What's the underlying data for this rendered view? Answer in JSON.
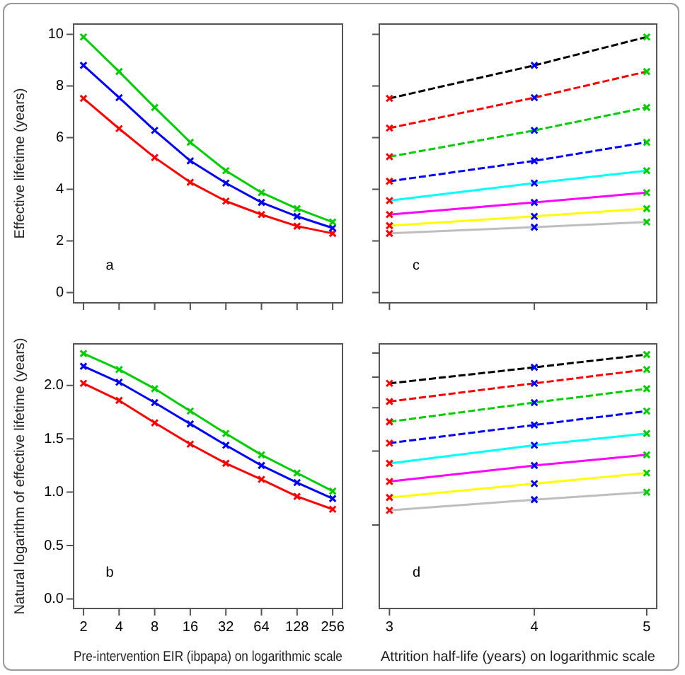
{
  "chart_data": [
    {
      "type": "line",
      "ylabel": "Effective lifetime (years)",
      "x": [
        2,
        4,
        8,
        16,
        32,
        64,
        128,
        256
      ],
      "xlim": [
        1.65,
        310
      ],
      "xticks": [
        2,
        4,
        8,
        16,
        32,
        64,
        128,
        256
      ],
      "ylim": [
        -0.4,
        10.4
      ],
      "yticks": [
        0,
        2,
        4,
        6,
        8,
        10
      ],
      "log": "x",
      "marker": "cross",
      "tick_labels": "y",
      "annotations": [
        "a"
      ],
      "series": [
        {
          "color": "#00cd00",
          "values": [
            9.9,
            8.56,
            7.17,
            5.82,
            4.72,
            3.87,
            3.25,
            2.73
          ]
        },
        {
          "color": "#0000ff",
          "values": [
            8.8,
            7.55,
            6.28,
            5.1,
            4.24,
            3.49,
            2.95,
            2.5
          ]
        },
        {
          "color": "#ff0000",
          "values": [
            7.52,
            6.35,
            5.23,
            4.27,
            3.54,
            3.02,
            2.57,
            2.29
          ]
        }
      ]
    },
    {
      "type": "line",
      "x": [
        3,
        4,
        5
      ],
      "xlim": [
        2.94,
        5.1
      ],
      "xticks": [
        3,
        4,
        5
      ],
      "ylim": [
        -0.4,
        10.4
      ],
      "yticks": [
        0,
        2,
        4,
        6,
        8,
        10
      ],
      "log": "x",
      "marker": "cross",
      "tick_labels": false,
      "annotations": [
        "c"
      ],
      "series": [
        {
          "color": "#000000",
          "line_style": "dashed",
          "colors": [
            "#ff0000",
            "#0000ff",
            "#00cd00"
          ],
          "values": [
            7.52,
            8.8,
            9.9
          ]
        },
        {
          "color": "#ff0000",
          "line_style": "dashed",
          "colors": [
            "#ff0000",
            "#0000ff",
            "#00cd00"
          ],
          "values": [
            6.37,
            7.55,
            8.56
          ]
        },
        {
          "color": "#00cd00",
          "line_style": "dashed",
          "colors": [
            "#ff0000",
            "#0000ff",
            "#00cd00"
          ],
          "values": [
            5.26,
            6.28,
            7.17
          ]
        },
        {
          "color": "#0000ff",
          "line_style": "dashed",
          "colors": [
            "#ff0000",
            "#0000ff",
            "#00cd00"
          ],
          "values": [
            4.31,
            5.1,
            5.82
          ]
        },
        {
          "color": "#00ffff",
          "line_style": "solid",
          "colors": [
            "#ff0000",
            "#0000ff",
            "#00cd00"
          ],
          "values": [
            3.56,
            4.24,
            4.72
          ]
        },
        {
          "color": "#ff00ff",
          "line_style": "solid",
          "colors": [
            "#ff0000",
            "#0000ff",
            "#00cd00"
          ],
          "values": [
            3.02,
            3.49,
            3.87
          ]
        },
        {
          "color": "#ffff00",
          "line_style": "solid",
          "colors": [
            "#ff0000",
            "#0000ff",
            "#00cd00"
          ],
          "values": [
            2.59,
            2.95,
            3.25
          ]
        },
        {
          "color": "#bebebe",
          "line_style": "solid",
          "colors": [
            "#ff0000",
            "#0000ff",
            "#00cd00"
          ],
          "values": [
            2.29,
            2.53,
            2.73
          ]
        }
      ]
    },
    {
      "type": "line",
      "xlabel": "Pre-intervention EIR (ibpapa) on logarithmic scale",
      "ylabel": "Natural logarithm of effective lifetime (years)",
      "x": [
        2,
        4,
        8,
        16,
        32,
        64,
        128,
        256
      ],
      "xlim": [
        1.65,
        310
      ],
      "xticks": [
        2,
        4,
        8,
        16,
        32,
        64,
        128,
        256
      ],
      "ylim": [
        -0.09,
        2.39
      ],
      "yticks": [
        {
          "value": 0,
          "label": "0.0"
        },
        {
          "value": 0.5,
          "label": "0.5"
        },
        {
          "value": 1,
          "label": "1.0"
        },
        {
          "value": 1.5,
          "label": "1.5"
        },
        {
          "value": 2,
          "label": "2.0"
        }
      ],
      "log": "x",
      "marker": "cross",
      "annotations": [
        "b"
      ],
      "series": [
        {
          "color": "#00cd00",
          "values": [
            2.3,
            2.15,
            1.97,
            1.76,
            1.55,
            1.35,
            1.18,
            1.01
          ]
        },
        {
          "color": "#0000ff",
          "values": [
            2.18,
            2.03,
            1.84,
            1.64,
            1.44,
            1.25,
            1.09,
            0.94
          ]
        },
        {
          "color": "#ff0000",
          "values": [
            2.02,
            1.86,
            1.65,
            1.45,
            1.27,
            1.12,
            0.96,
            0.84
          ]
        }
      ]
    },
    {
      "type": "line",
      "xlabel": "Attrition half-life (years) on logarithmic scale",
      "x": [
        3,
        4,
        5
      ],
      "xlim": [
        2.94,
        5.1
      ],
      "xticks": [
        3,
        4,
        5
      ],
      "ylim": [
        -0.09,
        2.39
      ],
      "yticks": [
        {
          "value": 0.693,
          "label": null
        },
        {
          "value": 1.386,
          "label": null
        },
        {
          "value": 1.792,
          "label": null
        },
        {
          "value": 2.079,
          "label": null
        },
        {
          "value": 2.303,
          "label": null
        }
      ],
      "log": "x",
      "marker": "cross",
      "tick_labels": "x",
      "annotations": [
        "d"
      ],
      "series": [
        {
          "color": "#000000",
          "line_style": "dashed",
          "colors": [
            "#ff0000",
            "#0000ff",
            "#00cd00"
          ],
          "values": [
            2.02,
            2.17,
            2.29
          ]
        },
        {
          "color": "#ff0000",
          "line_style": "dashed",
          "colors": [
            "#ff0000",
            "#0000ff",
            "#00cd00"
          ],
          "values": [
            1.85,
            2.02,
            2.15
          ]
        },
        {
          "color": "#00cd00",
          "line_style": "dashed",
          "colors": [
            "#ff0000",
            "#0000ff",
            "#00cd00"
          ],
          "values": [
            1.66,
            1.84,
            1.97
          ]
        },
        {
          "color": "#0000ff",
          "line_style": "dashed",
          "colors": [
            "#ff0000",
            "#0000ff",
            "#00cd00"
          ],
          "values": [
            1.46,
            1.63,
            1.76
          ]
        },
        {
          "color": "#00ffff",
          "line_style": "solid",
          "colors": [
            "#ff0000",
            "#0000ff",
            "#00cd00"
          ],
          "values": [
            1.27,
            1.44,
            1.55
          ]
        },
        {
          "color": "#ff00ff",
          "line_style": "solid",
          "colors": [
            "#ff0000",
            "#0000ff",
            "#00cd00"
          ],
          "values": [
            1.1,
            1.25,
            1.35
          ]
        },
        {
          "color": "#ffff00",
          "line_style": "solid",
          "colors": [
            "#ff0000",
            "#0000ff",
            "#00cd00"
          ],
          "values": [
            0.95,
            1.08,
            1.18
          ]
        },
        {
          "color": "#bebebe",
          "line_style": "solid",
          "colors": [
            "#ff0000",
            "#0000ff",
            "#00cd00"
          ],
          "values": [
            0.83,
            0.93,
            1.0
          ]
        }
      ]
    }
  ]
}
